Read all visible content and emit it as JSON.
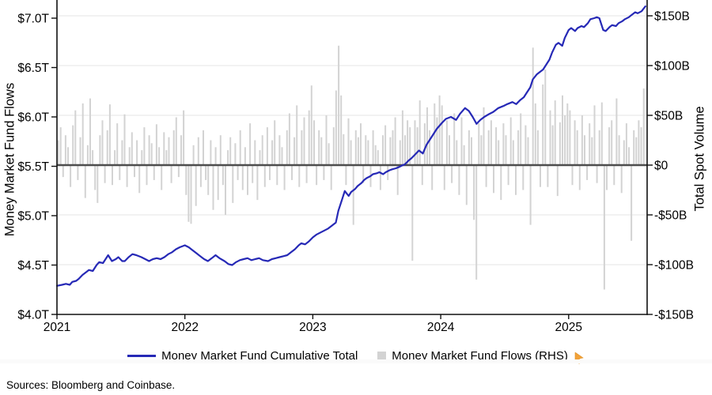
{
  "chart_data": {
    "type": "line+bar",
    "title": "",
    "left_axis": {
      "label": "Money Market Fund Flows",
      "unit": "$T",
      "ticks": [
        7.0,
        6.5,
        6.0,
        5.5,
        5.0,
        4.5,
        4.0
      ],
      "tick_labels": [
        "$7.0T",
        "$6.5T",
        "$6.0T",
        "$5.5T",
        "$5.0T",
        "$4.5T",
        "$4.0T"
      ],
      "range": [
        4.0,
        7.18
      ]
    },
    "right_axis": {
      "label": "Total Spot Volume",
      "unit": "$B",
      "ticks": [
        150,
        100,
        50,
        0,
        -50,
        -100,
        -150
      ],
      "tick_labels": [
        "$150B",
        "$100B",
        "$50B",
        "$0",
        "-$50B",
        "-$100B",
        "-$150B"
      ],
      "range": [
        -150,
        166
      ]
    },
    "x_axis": {
      "ticks": [
        2021,
        2022,
        2023,
        2024,
        2025
      ],
      "tick_labels": [
        "2021",
        "2022",
        "2023",
        "2024",
        "2025"
      ],
      "range": [
        2021.0,
        2025.62
      ]
    },
    "grid": true,
    "legend_position": "bottom",
    "colors": {
      "grid": "#e5e5e5",
      "baseline": "#4d4d4d",
      "axis": "#111111"
    },
    "series": [
      {
        "name": "Money Market Fund Cumulative Total",
        "type": "line",
        "axis": "left",
        "color": "#2629b6",
        "points": [
          [
            2021.0,
            4.29
          ],
          [
            2021.04,
            4.3
          ],
          [
            2021.07,
            4.31
          ],
          [
            2021.1,
            4.3
          ],
          [
            2021.12,
            4.33
          ],
          [
            2021.15,
            4.34
          ],
          [
            2021.17,
            4.36
          ],
          [
            2021.2,
            4.4
          ],
          [
            2021.23,
            4.43
          ],
          [
            2021.25,
            4.45
          ],
          [
            2021.28,
            4.44
          ],
          [
            2021.31,
            4.5
          ],
          [
            2021.33,
            4.53
          ],
          [
            2021.36,
            4.52
          ],
          [
            2021.4,
            4.6
          ],
          [
            2021.41,
            4.58
          ],
          [
            2021.43,
            4.54
          ],
          [
            2021.46,
            4.56
          ],
          [
            2021.48,
            4.58
          ],
          [
            2021.51,
            4.54
          ],
          [
            2021.53,
            4.54
          ],
          [
            2021.56,
            4.58
          ],
          [
            2021.59,
            4.61
          ],
          [
            2021.62,
            4.6
          ],
          [
            2021.66,
            4.58
          ],
          [
            2021.69,
            4.56
          ],
          [
            2021.72,
            4.54
          ],
          [
            2021.75,
            4.56
          ],
          [
            2021.78,
            4.57
          ],
          [
            2021.81,
            4.56
          ],
          [
            2021.84,
            4.58
          ],
          [
            2021.87,
            4.61
          ],
          [
            2021.9,
            4.63
          ],
          [
            2021.93,
            4.66
          ],
          [
            2021.96,
            4.68
          ],
          [
            2022.0,
            4.7
          ],
          [
            2022.03,
            4.68
          ],
          [
            2022.06,
            4.65
          ],
          [
            2022.09,
            4.62
          ],
          [
            2022.12,
            4.59
          ],
          [
            2022.15,
            4.56
          ],
          [
            2022.18,
            4.54
          ],
          [
            2022.21,
            4.57
          ],
          [
            2022.24,
            4.6
          ],
          [
            2022.27,
            4.57
          ],
          [
            2022.31,
            4.54
          ],
          [
            2022.34,
            4.51
          ],
          [
            2022.37,
            4.5
          ],
          [
            2022.4,
            4.53
          ],
          [
            2022.43,
            4.55
          ],
          [
            2022.46,
            4.56
          ],
          [
            2022.49,
            4.57
          ],
          [
            2022.52,
            4.55
          ],
          [
            2022.55,
            4.56
          ],
          [
            2022.58,
            4.57
          ],
          [
            2022.61,
            4.55
          ],
          [
            2022.65,
            4.54
          ],
          [
            2022.68,
            4.56
          ],
          [
            2022.71,
            4.57
          ],
          [
            2022.74,
            4.58
          ],
          [
            2022.77,
            4.59
          ],
          [
            2022.8,
            4.6
          ],
          [
            2022.83,
            4.63
          ],
          [
            2022.86,
            4.66
          ],
          [
            2022.89,
            4.7
          ],
          [
            2022.91,
            4.72
          ],
          [
            2022.94,
            4.71
          ],
          [
            2022.97,
            4.74
          ],
          [
            2023.0,
            4.78
          ],
          [
            2023.03,
            4.81
          ],
          [
            2023.06,
            4.83
          ],
          [
            2023.09,
            4.85
          ],
          [
            2023.12,
            4.87
          ],
          [
            2023.15,
            4.9
          ],
          [
            2023.18,
            4.93
          ],
          [
            2023.2,
            5.05
          ],
          [
            2023.23,
            5.17
          ],
          [
            2023.25,
            5.25
          ],
          [
            2023.28,
            5.2
          ],
          [
            2023.3,
            5.24
          ],
          [
            2023.33,
            5.27
          ],
          [
            2023.35,
            5.3
          ],
          [
            2023.38,
            5.33
          ],
          [
            2023.4,
            5.36
          ],
          [
            2023.42,
            5.38
          ],
          [
            2023.45,
            5.4
          ],
          [
            2023.47,
            5.42
          ],
          [
            2023.5,
            5.43
          ],
          [
            2023.52,
            5.44
          ],
          [
            2023.55,
            5.42
          ],
          [
            2023.57,
            5.44
          ],
          [
            2023.6,
            5.46
          ],
          [
            2023.62,
            5.47
          ],
          [
            2023.65,
            5.48
          ],
          [
            2023.67,
            5.49
          ],
          [
            2023.7,
            5.51
          ],
          [
            2023.72,
            5.52
          ],
          [
            2023.75,
            5.56
          ],
          [
            2023.77,
            5.58
          ],
          [
            2023.8,
            5.62
          ],
          [
            2023.83,
            5.66
          ],
          [
            2023.86,
            5.63
          ],
          [
            2023.89,
            5.72
          ],
          [
            2023.93,
            5.8
          ],
          [
            2023.97,
            5.88
          ],
          [
            2024.01,
            5.94
          ],
          [
            2024.04,
            5.98
          ],
          [
            2024.08,
            6.0
          ],
          [
            2024.12,
            5.97
          ],
          [
            2024.15,
            6.03
          ],
          [
            2024.19,
            6.09
          ],
          [
            2024.22,
            6.06
          ],
          [
            2024.25,
            6.0
          ],
          [
            2024.28,
            5.93
          ],
          [
            2024.31,
            5.97
          ],
          [
            2024.34,
            6.0
          ],
          [
            2024.38,
            6.03
          ],
          [
            2024.41,
            6.05
          ],
          [
            2024.45,
            6.09
          ],
          [
            2024.49,
            6.11
          ],
          [
            2024.52,
            6.13
          ],
          [
            2024.56,
            6.15
          ],
          [
            2024.59,
            6.13
          ],
          [
            2024.62,
            6.17
          ],
          [
            2024.65,
            6.2
          ],
          [
            2024.67,
            6.24
          ],
          [
            2024.7,
            6.3
          ],
          [
            2024.72,
            6.38
          ],
          [
            2024.75,
            6.43
          ],
          [
            2024.77,
            6.45
          ],
          [
            2024.8,
            6.48
          ],
          [
            2024.82,
            6.52
          ],
          [
            2024.85,
            6.58
          ],
          [
            2024.87,
            6.65
          ],
          [
            2024.9,
            6.73
          ],
          [
            2024.92,
            6.75
          ],
          [
            2024.95,
            6.72
          ],
          [
            2024.97,
            6.8
          ],
          [
            2025.0,
            6.88
          ],
          [
            2025.02,
            6.9
          ],
          [
            2025.05,
            6.87
          ],
          [
            2025.07,
            6.9
          ],
          [
            2025.1,
            6.92
          ],
          [
            2025.12,
            6.91
          ],
          [
            2025.15,
            6.95
          ],
          [
            2025.17,
            6.99
          ],
          [
            2025.2,
            7.0
          ],
          [
            2025.22,
            7.01
          ],
          [
            2025.24,
            7.0
          ],
          [
            2025.27,
            6.88
          ],
          [
            2025.29,
            6.87
          ],
          [
            2025.32,
            6.91
          ],
          [
            2025.34,
            6.93
          ],
          [
            2025.37,
            6.92
          ],
          [
            2025.39,
            6.95
          ],
          [
            2025.42,
            6.97
          ],
          [
            2025.44,
            6.99
          ],
          [
            2025.47,
            7.01
          ],
          [
            2025.49,
            7.03
          ],
          [
            2025.52,
            7.06
          ],
          [
            2025.54,
            7.05
          ],
          [
            2025.57,
            7.07
          ],
          [
            2025.6,
            7.12
          ]
        ]
      },
      {
        "name": "Money Market Fund Flows (RHS)",
        "type": "bar",
        "axis": "right",
        "color": "#d3d3d3",
        "x_start": 2021.0,
        "x_step_years": 0.019231,
        "values": [
          25,
          38,
          -12,
          30,
          18,
          -22,
          40,
          55,
          -15,
          28,
          62,
          -33,
          20,
          67,
          15,
          -25,
          -38,
          30,
          45,
          -18,
          35,
          61,
          -20,
          15,
          42,
          -15,
          25,
          51,
          -22,
          18,
          33,
          -12,
          25,
          -28,
          15,
          38,
          -20,
          30,
          22,
          -15,
          41,
          18,
          -25,
          33,
          15,
          28,
          -18,
          35,
          48,
          -12,
          30,
          55,
          -30,
          -57,
          -59,
          20,
          -41,
          28,
          -22,
          35,
          -15,
          -30,
          25,
          -45,
          18,
          -35,
          30,
          -20,
          -50,
          15,
          28,
          -38,
          22,
          -15,
          35,
          -25,
          18,
          -30,
          42,
          -18,
          25,
          -35,
          15,
          30,
          -22,
          38,
          -15,
          25,
          45,
          -20,
          30,
          18,
          -25,
          35,
          52,
          -15,
          28,
          60,
          -22,
          35,
          48,
          -18,
          55,
          80,
          45,
          -20,
          35,
          28,
          -15,
          50,
          22,
          -25,
          38,
          75,
          120,
          70,
          31,
          -20,
          47,
          25,
          -60,
          35,
          28,
          42,
          -18,
          30,
          25,
          -22,
          35,
          20,
          15,
          -25,
          30,
          40,
          -15,
          28,
          35,
          48,
          -30,
          25,
          55,
          30,
          45,
          38,
          -96,
          45,
          38,
          65,
          -20,
          42,
          58,
          35,
          -25,
          62,
          48,
          70,
          60,
          -25,
          45,
          30,
          -18,
          52,
          25,
          -30,
          48,
          20,
          -40,
          35,
          28,
          -55,
          -115,
          42,
          30,
          58,
          -22,
          35,
          45,
          -28,
          38,
          25,
          -35,
          42,
          30,
          -20,
          48,
          25,
          -30,
          35,
          52,
          -25,
          40,
          28,
          -60,
          118,
          62,
          35,
          -22,
          81,
          96,
          -22,
          55,
          40,
          65,
          -31,
          43,
          70,
          50,
          62,
          55,
          -20,
          45,
          35,
          -25,
          50,
          30,
          -15,
          42,
          28,
          60,
          -18,
          35,
          63,
          -125,
          -25,
          38,
          45,
          -20,
          67,
          30,
          -28,
          25,
          42,
          18,
          -76,
          35,
          28,
          45,
          38,
          77
        ]
      }
    ]
  },
  "legend": {
    "items": [
      {
        "label": "Money Market Fund Cumulative Total",
        "swatch": "line",
        "color": "#2629b6"
      },
      {
        "label": "Money Market Fund Flows (RHS)",
        "swatch": "box",
        "color": "#d3d3d3"
      }
    ],
    "cursor_icon_color": "#f2a23a"
  },
  "footer": {
    "sources": "Sources: Bloomberg and Coinbase."
  }
}
